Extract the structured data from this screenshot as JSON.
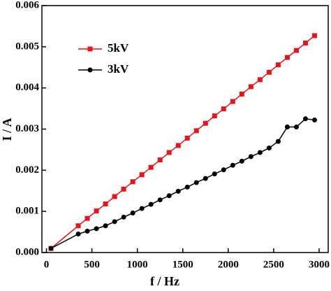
{
  "chart_data": {
    "type": "line",
    "xlabel": "f / Hz",
    "ylabel": "I / A",
    "x": [
      50,
      350,
      450,
      550,
      650,
      750,
      850,
      950,
      1050,
      1150,
      1250,
      1350,
      1450,
      1550,
      1650,
      1750,
      1850,
      1950,
      2050,
      2150,
      2250,
      2350,
      2450,
      2550,
      2650,
      2750,
      2850,
      2950
    ],
    "series": [
      {
        "name": "5kV",
        "color": "#e8141c",
        "marker": "square",
        "values": [
          0.0001,
          0.00065,
          0.00083,
          0.00101,
          0.00118,
          0.00136,
          0.00154,
          0.00172,
          0.00189,
          0.00207,
          0.00225,
          0.00243,
          0.0026,
          0.00278,
          0.00296,
          0.00314,
          0.00332,
          0.00349,
          0.00367,
          0.00385,
          0.00403,
          0.0042,
          0.00438,
          0.00456,
          0.00474,
          0.00491,
          0.00509,
          0.00527
        ]
      },
      {
        "name": "3kV",
        "color": "#000000",
        "marker": "circle",
        "values": [
          0.0001,
          0.00045,
          0.00052,
          0.00058,
          0.00065,
          0.00075,
          0.00086,
          0.00096,
          0.00107,
          0.00117,
          0.00128,
          0.00138,
          0.00149,
          0.00159,
          0.0017,
          0.0018,
          0.00191,
          0.00201,
          0.00212,
          0.00222,
          0.00233,
          0.00243,
          0.00254,
          0.0027,
          0.00305,
          0.00305,
          0.00325,
          0.00322
        ]
      }
    ],
    "xlim": [
      -50,
      3100
    ],
    "xticks": [
      0,
      500,
      1000,
      1500,
      2000,
      2500,
      3000
    ],
    "ylim": [
      0,
      0.006
    ],
    "yticks": [
      {
        "value": 0,
        "label": "0.000"
      },
      {
        "value": 0.001,
        "label": "0.001"
      },
      {
        "value": 0.002,
        "label": "0.002"
      },
      {
        "value": 0.003,
        "label": "0.003"
      },
      {
        "value": 0.004,
        "label": "0.004"
      },
      {
        "value": 0.005,
        "label": "0.005"
      },
      {
        "value": 0.006,
        "label": "0.006"
      }
    ]
  }
}
